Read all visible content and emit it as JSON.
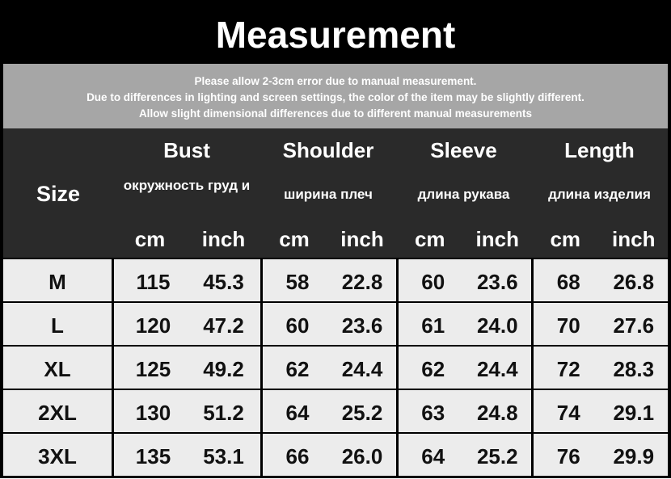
{
  "title": "Measurement",
  "notice": [
    "Please allow 2-3cm error due to manual measurement.",
    "Due to differences in lighting and screen settings, the color of the item may be slightly different.",
    "Allow slight dimensional differences due to different manual measurements"
  ],
  "header": {
    "size": "Size",
    "groups": [
      {
        "name": "Bust",
        "ru": "окружность груд и"
      },
      {
        "name": "Shoulder",
        "ru": "ширина плеч"
      },
      {
        "name": "Sleeve",
        "ru": "длина рукава"
      },
      {
        "name": "Length",
        "ru": "длина изделия"
      }
    ],
    "cm": "cm",
    "inch": "inch"
  },
  "rows": [
    {
      "size": "M",
      "v": [
        "115",
        "45.3",
        "58",
        "22.8",
        "60",
        "23.6",
        "68",
        "26.8"
      ]
    },
    {
      "size": "L",
      "v": [
        "120",
        "47.2",
        "60",
        "23.6",
        "61",
        "24.0",
        "70",
        "27.6"
      ]
    },
    {
      "size": "XL",
      "v": [
        "125",
        "49.2",
        "62",
        "24.4",
        "62",
        "24.4",
        "72",
        "28.3"
      ]
    },
    {
      "size": "2XL",
      "v": [
        "130",
        "51.2",
        "64",
        "25.2",
        "63",
        "24.8",
        "74",
        "29.1"
      ]
    },
    {
      "size": "3XL",
      "v": [
        "135",
        "53.1",
        "66",
        "26.0",
        "64",
        "25.2",
        "76",
        "29.9"
      ]
    }
  ]
}
